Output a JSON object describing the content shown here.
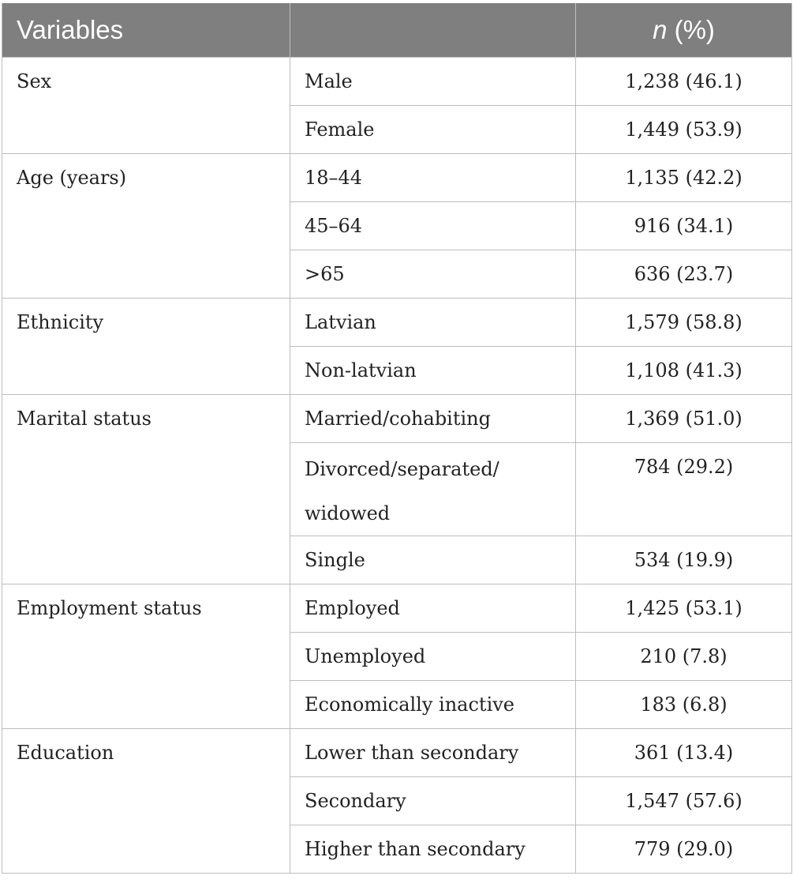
{
  "header": {
    "col1": "Variables",
    "col2": "",
    "col3_n": "n",
    "col3_pct": " (%)"
  },
  "groups": [
    {
      "variable": "Sex",
      "rows": [
        {
          "category": "Male",
          "value": "1,238 (46.1)"
        },
        {
          "category": "Female",
          "value": "1,449 (53.9)"
        }
      ]
    },
    {
      "variable": "Age (years)",
      "rows": [
        {
          "category": "18–44",
          "value": "1,135 (42.2)"
        },
        {
          "category": "45–64",
          "value": "916 (34.1)"
        },
        {
          "category": ">65",
          "value": "636 (23.7)"
        }
      ]
    },
    {
      "variable": "Ethnicity",
      "rows": [
        {
          "category": "Latvian",
          "value": "1,579 (58.8)"
        },
        {
          "category": "Non-latvian",
          "value": "1,108 (41.3)"
        }
      ]
    },
    {
      "variable": "Marital status",
      "rows": [
        {
          "category": "Married/cohabiting",
          "value": "1,369 (51.0)"
        },
        {
          "category": "Divorced/separated/ widowed",
          "value": "784 (29.2)"
        },
        {
          "category": "Single",
          "value": "534 (19.9)"
        }
      ]
    },
    {
      "variable": "Employment status",
      "rows": [
        {
          "category": "Employed",
          "value": "1,425 (53.1)"
        },
        {
          "category": "Unemployed",
          "value": "210 (7.8)"
        },
        {
          "category": "Economically inactive",
          "value": "183 (6.8)"
        }
      ]
    },
    {
      "variable": "Education",
      "rows": [
        {
          "category": "Lower than secondary",
          "value": "361 (13.4)"
        },
        {
          "category": "Secondary",
          "value": "1,547 (57.6)"
        },
        {
          "category": "Higher than secondary",
          "value": "779 (29.0)"
        }
      ]
    }
  ]
}
